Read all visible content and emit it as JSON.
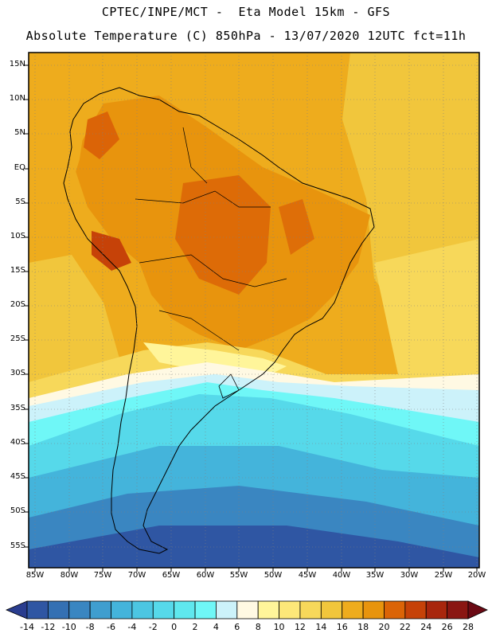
{
  "header": {
    "title_line1": "CPTEC/INPE/MCT -  Eta Model 15km - GFS",
    "title_line2": "Absolute Temperature (C) 850hPa - 13/07/2020 12UTC fct=11h"
  },
  "axes": {
    "latitudes": [
      "15N",
      "10N",
      "5N",
      "EQ",
      "5S",
      "10S",
      "15S",
      "20S",
      "25S",
      "30S",
      "35S",
      "40S",
      "45S",
      "50S",
      "55S"
    ],
    "longitudes": [
      "85W",
      "80W",
      "75W",
      "70W",
      "65W",
      "60W",
      "55W",
      "50W",
      "45W",
      "40W",
      "35W",
      "30W",
      "25W",
      "20W"
    ]
  },
  "colorbar": {
    "labels": [
      "-14",
      "-12",
      "-10",
      "-8",
      "-6",
      "-4",
      "-2",
      "0",
      "2",
      "4",
      "6",
      "8",
      "10",
      "12",
      "14",
      "16",
      "18",
      "20",
      "22",
      "24",
      "26",
      "28"
    ],
    "colors": [
      "#2a3d8f",
      "#2f56a3",
      "#3470b3",
      "#3a86c1",
      "#3f9ecf",
      "#44b4db",
      "#4cc6e2",
      "#56d9ea",
      "#5fe8ee",
      "#6ff7f7",
      "#ccf2fa",
      "#fff9e3",
      "#fff59a",
      "#fde879",
      "#f7d85a",
      "#f1c63c",
      "#eeac1d",
      "#e8940d",
      "#db6407",
      "#c64208",
      "#a8260d",
      "#8a1612",
      "#6b0a14"
    ]
  },
  "palette": {
    "ocean_north": "#eeaa1f",
    "land_warm": "#e8930e",
    "land_hot": "#db6408",
    "cool": "#f7d85a",
    "frame": "#000000"
  }
}
